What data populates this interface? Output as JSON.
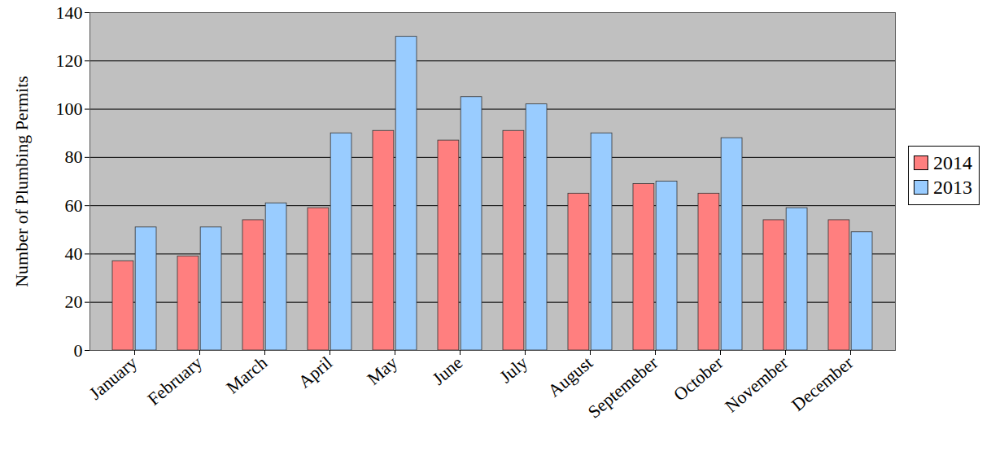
{
  "chart_data": {
    "type": "bar",
    "y_label": "Number of Plumbing Permits",
    "categories": [
      "January",
      "February",
      "March",
      "April",
      "May",
      "June",
      "July",
      "August",
      "Septemeber",
      "October",
      "November",
      "December"
    ],
    "series": [
      {
        "name": "2014",
        "color": "#ff7f7f",
        "values": [
          37,
          39,
          54,
          59,
          91,
          87,
          91,
          65,
          69,
          65,
          54,
          54
        ]
      },
      {
        "name": "2013",
        "color": "#99ccff",
        "values": [
          51,
          51,
          61,
          90,
          130,
          105,
          102,
          90,
          70,
          88,
          59,
          49
        ]
      }
    ],
    "ylim": [
      0,
      140
    ],
    "yticks": [
      0,
      20,
      40,
      60,
      80,
      100,
      120,
      140
    ],
    "grid": true,
    "legend": "right"
  }
}
